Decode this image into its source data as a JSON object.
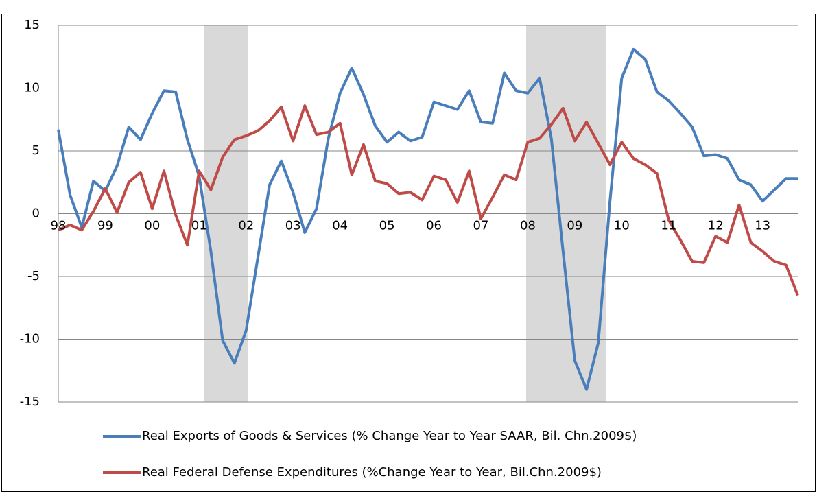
{
  "chart_data": {
    "type": "line",
    "categories": [
      "98",
      null,
      null,
      null,
      "99",
      null,
      null,
      null,
      "00",
      null,
      null,
      null,
      "01",
      null,
      null,
      null,
      "02",
      null,
      null,
      null,
      "03",
      null,
      null,
      null,
      "04",
      null,
      null,
      null,
      "05",
      null,
      null,
      null,
      "06",
      null,
      null,
      null,
      "07",
      null,
      null,
      null,
      "08",
      null,
      null,
      null,
      "09",
      null,
      null,
      null,
      "10",
      null,
      null,
      null,
      "11",
      null,
      null,
      null,
      "12",
      null,
      null,
      null,
      "13",
      null,
      null,
      null
    ],
    "series": [
      {
        "name": "Real Exports of Goods & Services (% Change Year to Year SAAR, Bil. Chn.2009$)",
        "color": "#4a7ebb",
        "values": [
          6.7,
          1.5,
          -1.1,
          2.6,
          1.8,
          3.8,
          6.9,
          5.9,
          8.0,
          9.8,
          9.7,
          5.9,
          3.0,
          -3.0,
          -10.1,
          -11.9,
          -9.3,
          -3.5,
          2.3,
          4.2,
          1.7,
          -1.5,
          0.4,
          6.0,
          9.6,
          11.6,
          9.5,
          7.0,
          5.7,
          6.5,
          5.8,
          6.1,
          8.9,
          8.6,
          8.3,
          9.8,
          7.3,
          7.2,
          11.2,
          9.8,
          9.6,
          10.8,
          6.0,
          -3.0,
          -11.7,
          -14.0,
          -10.3,
          1.0,
          10.8,
          13.1,
          12.3,
          9.7,
          9.0,
          8.0,
          6.9,
          4.6,
          4.7,
          4.4,
          2.7,
          2.3,
          1.0,
          1.9,
          2.8,
          2.8
        ]
      },
      {
        "name": "Real Federal Defense Expenditures (%Change Year to Year, Bil.Chn.2009$)",
        "color": "#be4b48",
        "values": [
          -1.3,
          -0.9,
          -1.3,
          0.2,
          2.0,
          0.1,
          2.5,
          3.3,
          0.4,
          3.4,
          -0.1,
          -2.5,
          3.4,
          1.9,
          4.5,
          5.9,
          6.2,
          6.6,
          7.4,
          8.5,
          5.8,
          8.6,
          6.3,
          6.5,
          7.2,
          3.1,
          5.5,
          2.6,
          2.4,
          1.6,
          1.7,
          1.1,
          3.0,
          2.7,
          0.9,
          3.4,
          -0.4,
          1.3,
          3.1,
          2.7,
          5.7,
          6.0,
          7.1,
          8.4,
          5.8,
          7.3,
          5.6,
          3.9,
          5.7,
          4.4,
          3.9,
          3.2,
          -0.5,
          -2.1,
          -3.8,
          -3.9,
          -1.8,
          -2.3,
          0.7,
          -2.3,
          -3.0,
          -3.8,
          -4.1,
          -6.5
        ]
      }
    ],
    "ylim": [
      -15,
      15
    ],
    "yticks": [
      -15,
      -10,
      -5,
      0,
      5,
      10,
      15
    ],
    "grid": true,
    "legend": "bottom"
  }
}
